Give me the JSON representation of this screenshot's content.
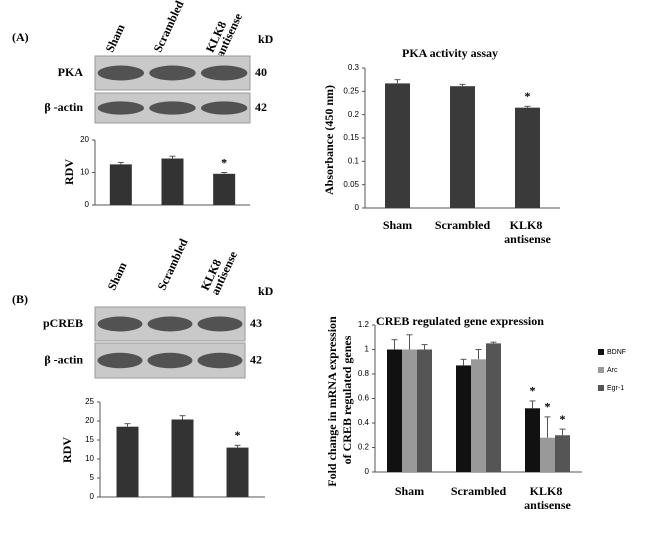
{
  "blots": [
    {
      "panel_label": "(A)",
      "lanes": [
        "Sham",
        "Scrambled",
        "KLK8 antisense"
      ],
      "unit": "kD",
      "rows": [
        {
          "label": "PKA",
          "kd": 40
        },
        {
          "label": "β -actin",
          "kd": 42
        }
      ]
    },
    {
      "panel_label": "(B)",
      "lanes": [
        "Sham",
        "Scrambled",
        "KLK8 antisense"
      ],
      "unit": "kD",
      "rows": [
        {
          "label": "pCREB",
          "kd": 43
        },
        {
          "label": "β -actin",
          "kd": 42
        }
      ]
    }
  ],
  "chart_data": [
    {
      "type": "bar",
      "ylabel": "RDV",
      "color": "#333333",
      "values": [
        12.5,
        14.3,
        9.6
      ],
      "errors": [
        0.6,
        0.7,
        0.4
      ],
      "significance": [
        null,
        null,
        "*"
      ],
      "ylim": [
        0,
        20
      ],
      "yticks": [
        0,
        10,
        20
      ]
    },
    {
      "type": "bar",
      "title": "PKA activity assay",
      "ylabel": "Absorbance (450 nm)",
      "color": "#3a3a3a",
      "categories": [
        "Sham",
        "Scrambled",
        "KLK8 antisense"
      ],
      "values": [
        0.267,
        0.261,
        0.215
      ],
      "errors": [
        0.008,
        0.004,
        0.003
      ],
      "significance": [
        null,
        null,
        "*"
      ],
      "ylim": [
        0,
        0.3
      ],
      "yticks": [
        0,
        0.05,
        0.1,
        0.15,
        0.2,
        0.25,
        0.3
      ]
    },
    {
      "type": "bar",
      "ylabel": "RDV",
      "color": "#333333",
      "values": [
        18.5,
        20.4,
        13.0
      ],
      "errors": [
        0.8,
        1.0,
        0.6
      ],
      "significance": [
        null,
        null,
        "*"
      ],
      "ylim": [
        0,
        25
      ],
      "yticks": [
        0,
        5,
        10,
        15,
        20,
        25
      ]
    },
    {
      "type": "grouped_bar",
      "title": "CREB regulated gene expression",
      "ylabel": "Fold change in mRNA expression of CREB regulated genes",
      "categories": [
        "Sham",
        "Scrambled",
        "KLK8 antisense"
      ],
      "ylim": [
        0,
        1.2
      ],
      "yticks": [
        0,
        0.2,
        0.4,
        0.6,
        0.8,
        1,
        1.2
      ],
      "series": [
        {
          "name": "BDNF",
          "color": "#111111",
          "values": [
            1.0,
            0.87,
            0.52
          ],
          "errors": [
            0.08,
            0.05,
            0.06
          ],
          "significance": [
            null,
            null,
            "*"
          ]
        },
        {
          "name": "Arc",
          "color": "#999999",
          "values": [
            1.0,
            0.92,
            0.28
          ],
          "errors": [
            0.12,
            0.08,
            0.17
          ],
          "significance": [
            null,
            null,
            "*"
          ]
        },
        {
          "name": "Egr-1",
          "color": "#555555",
          "values": [
            1.0,
            1.05,
            0.3
          ],
          "errors": [
            0.04,
            0.01,
            0.05
          ],
          "significance": [
            null,
            null,
            "*"
          ]
        }
      ]
    }
  ]
}
